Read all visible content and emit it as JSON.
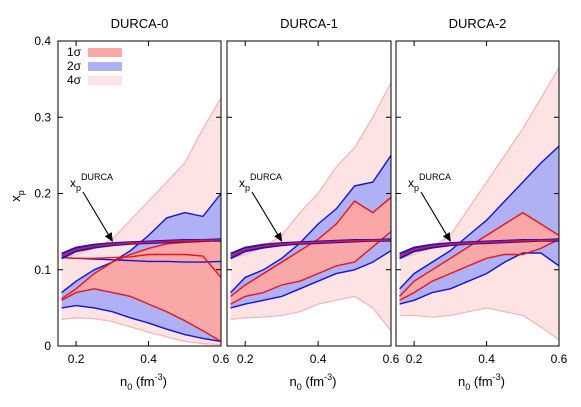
{
  "chart_data": {
    "type": "area",
    "ylabel_main": "x",
    "ylabel_sub": "p",
    "xlabel_main": "n",
    "xlabel_sub": "0",
    "xlabel_unit": "(fm",
    "xlabel_unit_sup": "-3",
    "xlabel_unit_close": ")",
    "xlim": [
      0.15,
      0.6
    ],
    "ylim": [
      0,
      0.4
    ],
    "xticks": [
      "0.2",
      "0.4",
      "0.6"
    ],
    "xtick_values": [
      0.2,
      0.4,
      0.6
    ],
    "yticks": [
      "0",
      "0.1",
      "0.2",
      "0.3",
      "0.4"
    ],
    "ytick_values": [
      0,
      0.1,
      0.2,
      0.3,
      0.4
    ],
    "legend": {
      "placement": "top-left",
      "entries": [
        {
          "label": "1σ",
          "color": "#f9a7a7"
        },
        {
          "label": "2σ",
          "color": "#b0b0f5"
        },
        {
          "label": "4σ",
          "color": "#fde3e3"
        }
      ]
    },
    "annotation": {
      "main": "x",
      "sub": "p",
      "sup": "DURCA",
      "arrow_tip": [
        0.3,
        0.135
      ]
    },
    "colors": {
      "sigma1": "#f9a7a7",
      "sigma2": "#b0b0f5",
      "sigma4": "#fde3e3",
      "line1": "#e8141e",
      "line2": "#1414d2",
      "line4": "#f5b8b8"
    },
    "panels": [
      {
        "title": "DURCA-0",
        "x": [
          0.16,
          0.2,
          0.25,
          0.3,
          0.35,
          0.4,
          0.45,
          0.5,
          0.55,
          0.6
        ],
        "sigma4": {
          "lower": [
            0.035,
            0.037,
            0.036,
            0.032,
            0.025,
            0.018,
            0.012,
            0.006,
            0.003,
            0.002
          ],
          "upper": [
            0.115,
            0.12,
            0.128,
            0.14,
            0.165,
            0.19,
            0.215,
            0.24,
            0.285,
            0.325
          ]
        },
        "sigma2": {
          "lower": [
            0.05,
            0.053,
            0.05,
            0.045,
            0.037,
            0.03,
            0.022,
            0.015,
            0.01,
            0.006
          ],
          "upper": [
            0.07,
            0.085,
            0.1,
            0.11,
            0.125,
            0.145,
            0.168,
            0.175,
            0.17,
            0.2
          ]
        },
        "sigma1": {
          "lower": [
            0.06,
            0.07,
            0.075,
            0.07,
            0.065,
            0.055,
            0.045,
            0.033,
            0.02,
            0.006
          ],
          "upper": [
            0.062,
            0.075,
            0.095,
            0.11,
            0.12,
            0.128,
            0.134,
            0.136,
            0.137,
            0.139
          ]
        },
        "sigma2_mid": [
          0.116,
          0.115,
          0.114,
          0.113,
          0.112,
          0.111,
          0.111,
          0.11,
          0.11,
          0.111
        ],
        "sigma1_tail": [
          0.116,
          0.115,
          0.115,
          0.116,
          0.117,
          0.12,
          0.12,
          0.12,
          0.118,
          0.09
        ],
        "durca_band": {
          "lower": [
            0.115,
            0.124,
            0.129,
            0.132,
            0.134,
            0.135,
            0.136,
            0.137,
            0.138,
            0.138
          ],
          "upper": [
            0.121,
            0.129,
            0.133,
            0.135,
            0.136,
            0.137,
            0.138,
            0.139,
            0.139,
            0.14
          ]
        }
      },
      {
        "title": "DURCA-1",
        "x": [
          0.16,
          0.2,
          0.25,
          0.3,
          0.35,
          0.4,
          0.45,
          0.5,
          0.55,
          0.6
        ],
        "sigma4": {
          "lower": [
            0.035,
            0.037,
            0.038,
            0.04,
            0.045,
            0.055,
            0.06,
            0.065,
            0.05,
            0.02
          ],
          "upper": [
            0.115,
            0.12,
            0.13,
            0.145,
            0.175,
            0.2,
            0.235,
            0.26,
            0.3,
            0.345
          ]
        },
        "sigma2": {
          "lower": [
            0.05,
            0.055,
            0.06,
            0.065,
            0.075,
            0.085,
            0.095,
            0.1,
            0.11,
            0.125
          ],
          "upper": [
            0.07,
            0.09,
            0.1,
            0.115,
            0.135,
            0.16,
            0.18,
            0.21,
            0.215,
            0.25
          ]
        },
        "sigma1": {
          "lower": [
            0.055,
            0.065,
            0.07,
            0.08,
            0.085,
            0.095,
            0.105,
            0.11,
            0.13,
            0.15
          ],
          "upper": [
            0.065,
            0.08,
            0.095,
            0.11,
            0.125,
            0.14,
            0.16,
            0.19,
            0.175,
            0.195
          ]
        },
        "durca_band": {
          "lower": [
            0.115,
            0.124,
            0.129,
            0.132,
            0.134,
            0.135,
            0.136,
            0.137,
            0.138,
            0.138
          ],
          "upper": [
            0.121,
            0.129,
            0.133,
            0.135,
            0.136,
            0.137,
            0.138,
            0.139,
            0.139,
            0.14
          ]
        }
      },
      {
        "title": "DURCA-2",
        "x": [
          0.16,
          0.2,
          0.25,
          0.3,
          0.35,
          0.4,
          0.45,
          0.5,
          0.55,
          0.6
        ],
        "sigma4": {
          "lower": [
            0.04,
            0.04,
            0.038,
            0.04,
            0.045,
            0.05,
            0.045,
            0.04,
            0.025,
            0.008
          ],
          "upper": [
            0.115,
            0.12,
            0.13,
            0.145,
            0.18,
            0.215,
            0.25,
            0.285,
            0.325,
            0.365
          ]
        },
        "sigma2": {
          "lower": [
            0.055,
            0.06,
            0.07,
            0.075,
            0.085,
            0.095,
            0.11,
            0.122,
            0.122,
            0.105
          ],
          "upper": [
            0.075,
            0.095,
            0.11,
            0.125,
            0.145,
            0.165,
            0.19,
            0.215,
            0.24,
            0.262
          ]
        },
        "sigma1": {
          "lower": [
            0.06,
            0.07,
            0.085,
            0.095,
            0.105,
            0.115,
            0.12,
            0.12,
            0.128,
            0.14
          ],
          "upper": [
            0.065,
            0.085,
            0.1,
            0.115,
            0.13,
            0.145,
            0.16,
            0.175,
            0.16,
            0.145
          ]
        },
        "durca_band": {
          "lower": [
            0.115,
            0.124,
            0.129,
            0.132,
            0.134,
            0.135,
            0.136,
            0.137,
            0.138,
            0.138
          ],
          "upper": [
            0.121,
            0.129,
            0.133,
            0.135,
            0.136,
            0.137,
            0.138,
            0.139,
            0.139,
            0.14
          ]
        }
      }
    ]
  }
}
